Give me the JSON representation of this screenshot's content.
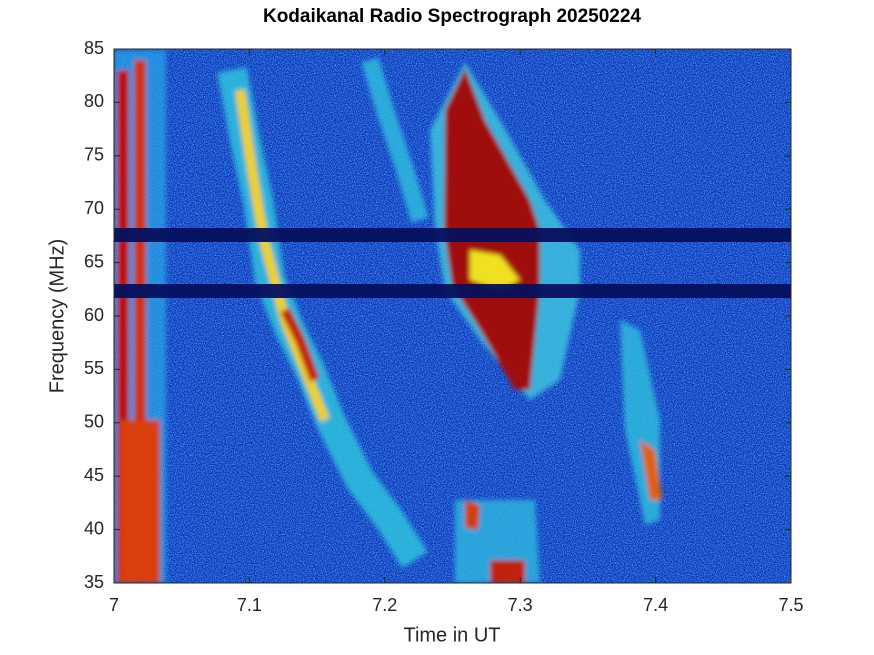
{
  "chart_data": {
    "type": "heatmap",
    "title": "Kodaikanal Radio Spectrograph  20250224",
    "x_label": "Time in UT",
    "y_label": "Frequency (MHz)",
    "xlim": [
      7,
      7.5
    ],
    "xticks": [
      7,
      7.1,
      7.2,
      7.3,
      7.4,
      7.5
    ],
    "ylim": [
      35,
      85
    ],
    "yticks": [
      35,
      40,
      45,
      50,
      55,
      60,
      65,
      70,
      75,
      80,
      85
    ]
  }
}
